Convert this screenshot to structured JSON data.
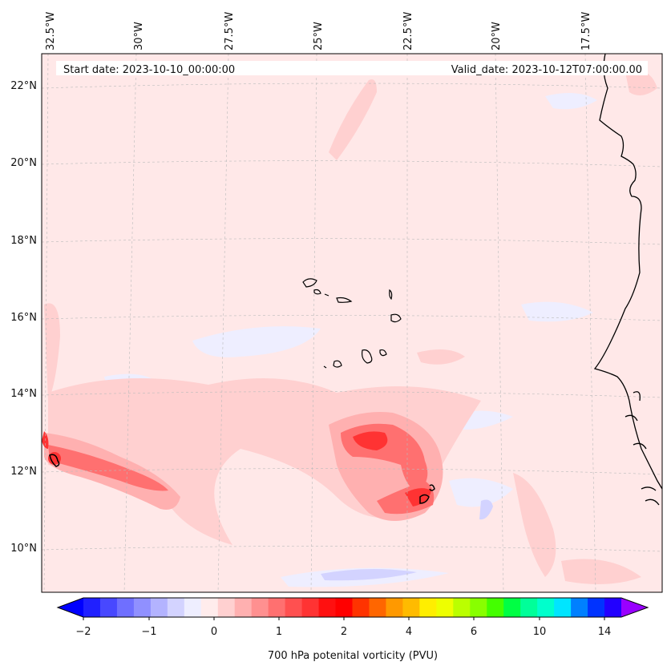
{
  "map": {
    "start_label": "Start date: 2023-10-10_00:00:00",
    "valid_label": "Valid_date: 2023-10-12T07:00:00.00",
    "lon_labels": [
      "32.5°W",
      "30°W",
      "27.5°W",
      "25°W",
      "22.5°W",
      "20°W",
      "17.5°W"
    ],
    "lat_labels": [
      "22°N",
      "20°N",
      "18°N",
      "16°N",
      "14°N",
      "12°N",
      "10°N"
    ],
    "colorbar_ticks": [
      "−2",
      "−1",
      "0",
      "1",
      "2",
      "4",
      "6",
      "10",
      "14"
    ],
    "colorbar_label": "700 hPa potenital vorticity (PVU)",
    "colors": {
      "background_field": "#ffe8e8",
      "coastline": "#000000",
      "colorbar": [
        "#0000ff",
        "#2020ff",
        "#4848ff",
        "#6f6fff",
        "#9090ff",
        "#b3b3ff",
        "#d3d3ff",
        "#eeeeff",
        "#ffecec",
        "#ffd0d0",
        "#ffb0b0",
        "#ff9090",
        "#ff7070",
        "#ff5050",
        "#ff3333",
        "#ff1010",
        "#ff0000",
        "#ff3300",
        "#ff6600",
        "#ff9900",
        "#ffbb00",
        "#ffee00",
        "#eeff00",
        "#bbff00",
        "#88ff00",
        "#44ff00",
        "#00ff44",
        "#00ff99",
        "#00ffcc",
        "#00e5ff",
        "#0080ff",
        "#0033ff",
        "#2200ff",
        "#9900ff"
      ]
    }
  }
}
